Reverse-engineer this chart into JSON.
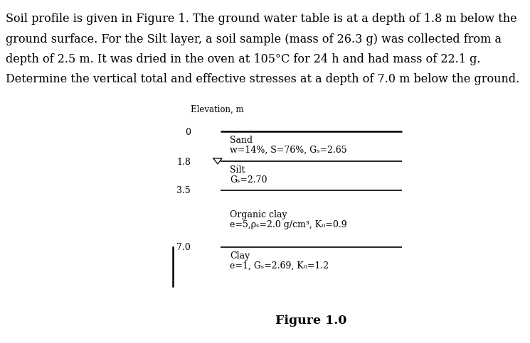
{
  "paragraph_lines": [
    "Soil profile is given in Figure 1. The ground water table is at a depth of 1.8 m below the",
    "ground surface. For the Silt layer, a soil sample (mass of 26.3 g) was collected from a",
    "depth of 2.5 m. It was dried in the oven at 105°C for 24 h and had mass of 22.1 g.",
    "Determine the vertical total and effective stresses at a depth of 7.0 m below the ground."
  ],
  "elevation_label": "Elevation, m",
  "depths": [
    0.0,
    1.8,
    3.5,
    7.0
  ],
  "depth_labels": [
    "0",
    "1.8",
    "3.5",
    "7.0"
  ],
  "layer_names": [
    "Sand",
    "Silt",
    "Organic clay",
    "Clay"
  ],
  "layer_props": [
    "w=14%, S=76%, Gₛ=2.65",
    "Gₛ=2.70",
    "e=5,ρₛ=2.0 g/cm³, K₀=0.9",
    "e=1, Gₛ=2.69, K₀=1.2"
  ],
  "figure_caption": "Figure 1.0",
  "bg_color": "#ffffff",
  "text_color": "#000000",
  "line_color": "#000000",
  "para_fontsize": 11.5,
  "label_fontsize": 9.0,
  "caption_fontsize": 12.5
}
